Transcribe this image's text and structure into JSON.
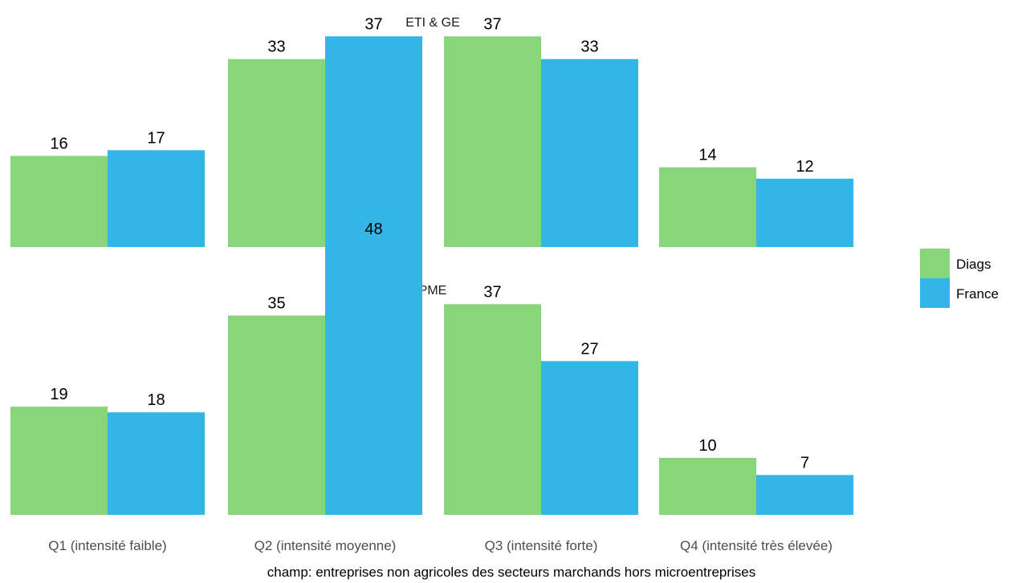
{
  "chart_data": {
    "type": "bar",
    "categories": [
      "Q1 (intensité faible)",
      "Q2 (intensité moyenne)",
      "Q3 (intensité forte)",
      "Q4 (intensité très élevée)"
    ],
    "legend": {
      "position": "right",
      "entries": [
        {
          "name": "Diags",
          "color": "#88d67a"
        },
        {
          "name": "France",
          "color": "#33b5e5"
        }
      ]
    },
    "panels": [
      {
        "title": "ETI & GE",
        "series": [
          {
            "name": "Diags",
            "values": [
              16,
              33,
              37,
              14
            ]
          },
          {
            "name": "France",
            "values": [
              17,
              37,
              33,
              12
            ]
          }
        ]
      },
      {
        "title": "PME",
        "series": [
          {
            "name": "Diags",
            "values": [
              19,
              35,
              37,
              10
            ]
          },
          {
            "name": "France",
            "values": [
              18,
              48,
              27,
              7
            ]
          }
        ]
      }
    ],
    "caption": "champ: entreprises non agricoles des secteurs marchands hors microentreprises",
    "grid": false,
    "ylim": [
      0,
      53
    ]
  }
}
